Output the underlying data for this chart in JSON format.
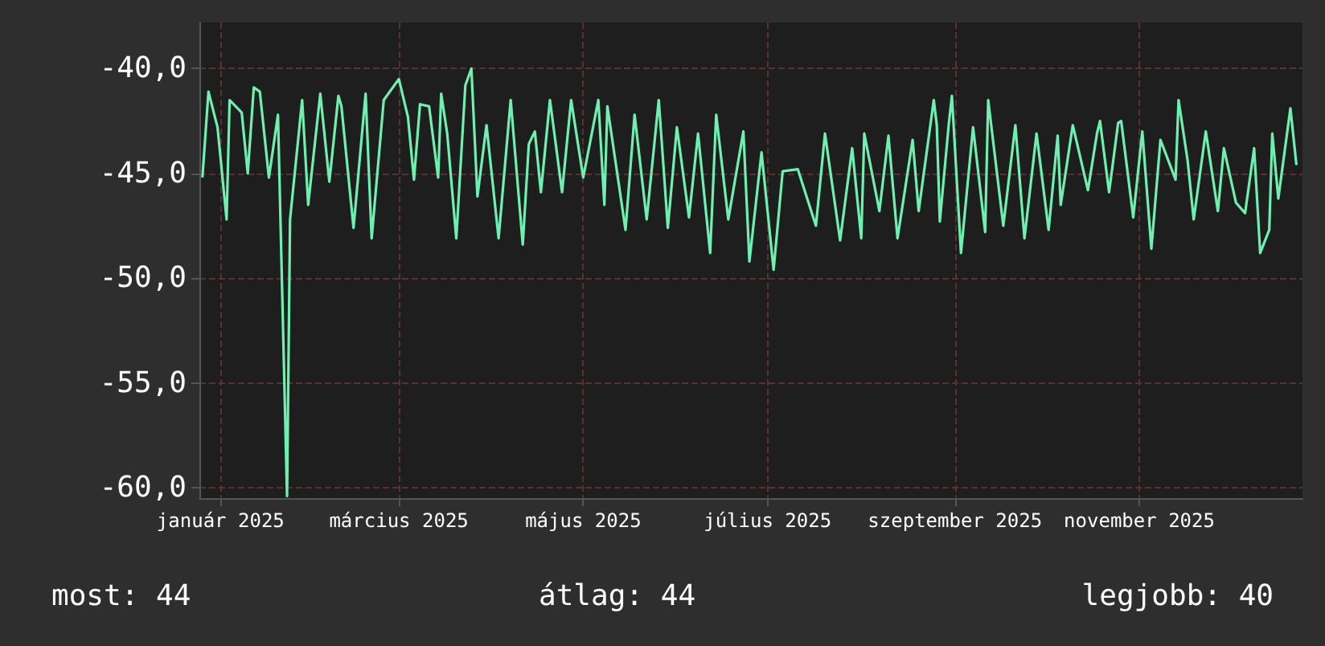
{
  "chart_data": {
    "type": "line",
    "color": "#6ef0b0",
    "grid": true,
    "xlim": [
      "2024-12-25",
      "2025-12-25"
    ],
    "xticks": [
      {
        "value": "2025-01-01",
        "label": "január 2025"
      },
      {
        "value": "2025-03-01",
        "label": "március 2025"
      },
      {
        "value": "2025-05-01",
        "label": "május 2025"
      },
      {
        "value": "2025-07-01",
        "label": "július 2025"
      },
      {
        "value": "2025-09-01",
        "label": "szeptember 2025"
      },
      {
        "value": "2025-11-01",
        "label": "november 2025"
      }
    ],
    "ylim": [
      -60.5,
      -37.8
    ],
    "yticks": [
      {
        "value": -60,
        "label": "-60,0"
      },
      {
        "value": -55,
        "label": "-55,0"
      },
      {
        "value": -50,
        "label": "-50,0"
      },
      {
        "value": -45,
        "label": "-45,0"
      },
      {
        "value": -40,
        "label": "-40,0"
      }
    ],
    "x": [
      "2024-12-26",
      "2024-12-28",
      "2024-12-31",
      "2025-01-03",
      "2025-01-04",
      "2025-01-08",
      "2025-01-10",
      "2025-01-12",
      "2025-01-14",
      "2025-01-17",
      "2025-01-20",
      "2025-01-23",
      "2025-01-24",
      "2025-01-28",
      "2025-01-30",
      "2025-02-03",
      "2025-02-06",
      "2025-02-09",
      "2025-02-10",
      "2025-02-14",
      "2025-02-18",
      "2025-02-20",
      "2025-02-24",
      "2025-03-01",
      "2025-03-04",
      "2025-03-06",
      "2025-03-08",
      "2025-03-11",
      "2025-03-14",
      "2025-03-15",
      "2025-03-17",
      "2025-03-20",
      "2025-03-23",
      "2025-03-25",
      "2025-03-27",
      "2025-03-30",
      "2025-04-03",
      "2025-04-07",
      "2025-04-11",
      "2025-04-13",
      "2025-04-15",
      "2025-04-17",
      "2025-04-20",
      "2025-04-24",
      "2025-04-27",
      "2025-05-01",
      "2025-05-06",
      "2025-05-08",
      "2025-05-09",
      "2025-05-15",
      "2025-05-18",
      "2025-05-22",
      "2025-05-26",
      "2025-05-29",
      "2025-06-01",
      "2025-06-05",
      "2025-06-08",
      "2025-06-12",
      "2025-06-14",
      "2025-06-18",
      "2025-06-23",
      "2025-06-25",
      "2025-06-29",
      "2025-07-03",
      "2025-07-06",
      "2025-07-11",
      "2025-07-17",
      "2025-07-20",
      "2025-07-25",
      "2025-07-29",
      "2025-08-01",
      "2025-08-02",
      "2025-08-07",
      "2025-08-10",
      "2025-08-13",
      "2025-08-18",
      "2025-08-20",
      "2025-08-25",
      "2025-08-26",
      "2025-08-27",
      "2025-08-30",
      "2025-08-31",
      "2025-09-03",
      "2025-09-07",
      "2025-09-11",
      "2025-09-12",
      "2025-09-17",
      "2025-09-21",
      "2025-09-24",
      "2025-09-28",
      "2025-10-02",
      "2025-10-05",
      "2025-10-06",
      "2025-10-10",
      "2025-10-15",
      "2025-10-18",
      "2025-10-19",
      "2025-10-22",
      "2025-10-25",
      "2025-10-26",
      "2025-10-30",
      "2025-11-02",
      "2025-11-05",
      "2025-11-08",
      "2025-11-13",
      "2025-11-14",
      "2025-11-17",
      "2025-11-19",
      "2025-11-23",
      "2025-11-27",
      "2025-11-29",
      "2025-12-03",
      "2025-12-06",
      "2025-12-09",
      "2025-12-11",
      "2025-12-14",
      "2025-12-15",
      "2025-12-17",
      "2025-12-21",
      "2025-12-23"
    ],
    "values": [
      -45.2,
      -41.1,
      -42.8,
      -47.2,
      -41.5,
      -42.1,
      -45,
      -40.9,
      -41.1,
      -45.2,
      -42.2,
      -60.4,
      -47.2,
      -41.5,
      -46.5,
      -41.2,
      -45.4,
      -41.3,
      -41.8,
      -47.6,
      -41.2,
      -48.1,
      -41.5,
      -40.5,
      -42.3,
      -45.3,
      -41.7,
      -41.8,
      -45.2,
      -41.2,
      -43.1,
      -48.1,
      -40.8,
      -40,
      -46.1,
      -42.7,
      -48.1,
      -41.5,
      -48.4,
      -43.6,
      -43,
      -45.9,
      -41.5,
      -45.9,
      -41.5,
      -45.2,
      -41.5,
      -46.5,
      -41.8,
      -47.7,
      -42.2,
      -47.2,
      -41.5,
      -47.6,
      -42.8,
      -47.1,
      -43.1,
      -48.8,
      -42.2,
      -47.2,
      -43,
      -49.2,
      -44,
      -49.6,
      -44.9,
      -44.8,
      -47.5,
      -43.1,
      -48.2,
      -43.8,
      -48.1,
      -43.1,
      -46.8,
      -43.2,
      -48.1,
      -43.4,
      -46.8,
      -41.5,
      -42.7,
      -47.3,
      -42.6,
      -41.3,
      -48.8,
      -42.8,
      -47.8,
      -41.5,
      -47.5,
      -42.7,
      -48.1,
      -43.1,
      -47.7,
      -43.2,
      -46.5,
      -42.7,
      -45.8,
      -43.1,
      -42.5,
      -45.9,
      -42.6,
      -42.5,
      -47.1,
      -43,
      -48.6,
      -43.4,
      -45.3,
      -41.5,
      -44.4,
      -47.2,
      -43,
      -46.8,
      -43.8,
      -46.4,
      -46.9,
      -43.8,
      -48.8,
      -47.7,
      -43.1,
      -46.2,
      -41.9,
      -44.6
    ],
    "annotations": [
      "most: 44",
      "átlag: 44",
      "legjobb: 40"
    ]
  }
}
